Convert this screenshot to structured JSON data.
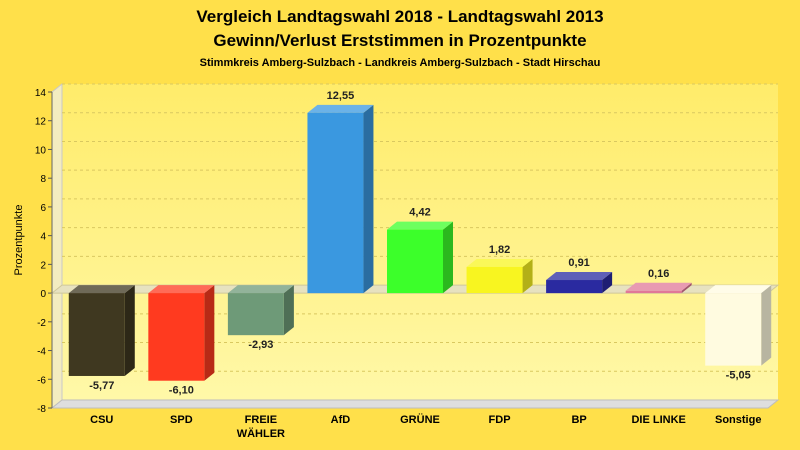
{
  "chart_data": {
    "type": "bar",
    "title": "Vergleich Landtagswahl 2018 - Landtagswahl 2013",
    "subtitle": "Gewinn/Verlust Erststimmen in Prozentpunkte",
    "caption": "Stimmkreis Amberg-Sulzbach - Landkreis Amberg-Sulzbach - Stadt Hirschau",
    "ylabel": "Prozentpunkte",
    "xlabel": "",
    "ylim": [
      -8,
      14
    ],
    "yticks": [
      14,
      12,
      10,
      8,
      6,
      4,
      2,
      0,
      -2,
      -4,
      -6,
      -8
    ],
    "grid": true,
    "categories": [
      {
        "lines": [
          "CSU"
        ]
      },
      {
        "lines": [
          "SPD"
        ]
      },
      {
        "lines": [
          "FREIE",
          "WÄHLER"
        ]
      },
      {
        "lines": [
          "AfD"
        ]
      },
      {
        "lines": [
          "GRÜNE"
        ]
      },
      {
        "lines": [
          "FDP"
        ]
      },
      {
        "lines": [
          "BP"
        ]
      },
      {
        "lines": [
          "DIE LINKE"
        ]
      },
      {
        "lines": [
          "Sonstige"
        ]
      }
    ],
    "values": [
      -5.77,
      -6.1,
      -2.93,
      12.55,
      4.42,
      1.82,
      0.91,
      0.16,
      -5.05
    ],
    "value_labels": [
      "-5,77",
      "-6,10",
      "-2,93",
      "12,55",
      "4,42",
      "1,82",
      "0,91",
      "0,16",
      "-5,05"
    ],
    "colors": [
      "#3f3820",
      "#ff3a1f",
      "#6e9a78",
      "#3a98e0",
      "#3cff2a",
      "#f8f520",
      "#2a2aa0",
      "#e07898",
      "#fffbe0"
    ]
  }
}
